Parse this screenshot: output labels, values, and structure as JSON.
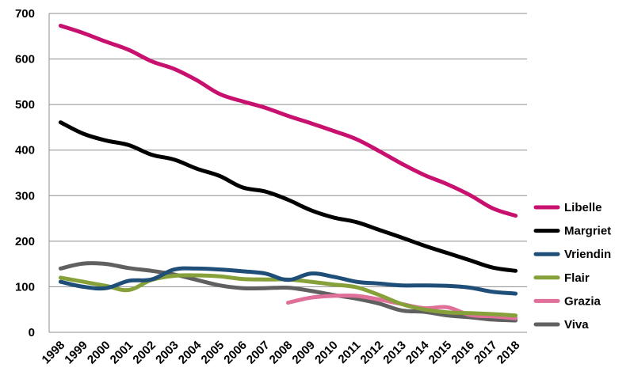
{
  "chart_data": {
    "type": "line",
    "title": "",
    "xlabel": "",
    "ylabel": "",
    "ylim": [
      0,
      700
    ],
    "yticks": [
      0,
      100,
      200,
      300,
      400,
      500,
      600,
      700
    ],
    "grid": true,
    "legend_position": "right",
    "x": [
      "1998",
      "1999",
      "2000",
      "2001",
      "2002",
      "2003",
      "2004",
      "2005",
      "2006",
      "2007",
      "2008",
      "2009",
      "2010",
      "2011",
      "2012",
      "2013",
      "2014",
      "2015",
      "2016",
      "2017",
      "2018"
    ],
    "series": [
      {
        "name": "Libelle",
        "color": "#c8106f",
        "values": [
          673,
          657,
          638,
          620,
          595,
          578,
          553,
          523,
          507,
          493,
          475,
          459,
          442,
          424,
          398,
          370,
          345,
          325,
          301,
          272,
          256
        ]
      },
      {
        "name": "Margriet",
        "color": "#000000",
        "values": [
          461,
          436,
          421,
          411,
          390,
          379,
          359,
          343,
          318,
          309,
          291,
          268,
          252,
          242,
          225,
          208,
          190,
          174,
          158,
          142,
          135
        ]
      },
      {
        "name": "Vriendin",
        "color": "#1f4e79",
        "values": [
          111,
          100,
          97,
          113,
          116,
          138,
          140,
          138,
          134,
          129,
          115,
          129,
          122,
          111,
          107,
          103,
          103,
          102,
          98,
          89,
          85
        ]
      },
      {
        "name": "Flair",
        "color": "#86a03a",
        "values": [
          120,
          111,
          102,
          93,
          115,
          124,
          125,
          123,
          117,
          116,
          116,
          111,
          105,
          99,
          82,
          62,
          50,
          44,
          42,
          40,
          37
        ]
      },
      {
        "name": "Grazia",
        "color": "#e0709a",
        "values": [
          null,
          null,
          null,
          null,
          null,
          null,
          null,
          null,
          null,
          null,
          65,
          76,
          80,
          80,
          72,
          62,
          53,
          55,
          38,
          35,
          31
        ]
      },
      {
        "name": "Viva",
        "color": "#606060",
        "values": [
          140,
          151,
          150,
          141,
          135,
          127,
          115,
          103,
          97,
          97,
          98,
          91,
          82,
          74,
          63,
          48,
          45,
          37,
          33,
          28,
          26
        ]
      }
    ]
  }
}
